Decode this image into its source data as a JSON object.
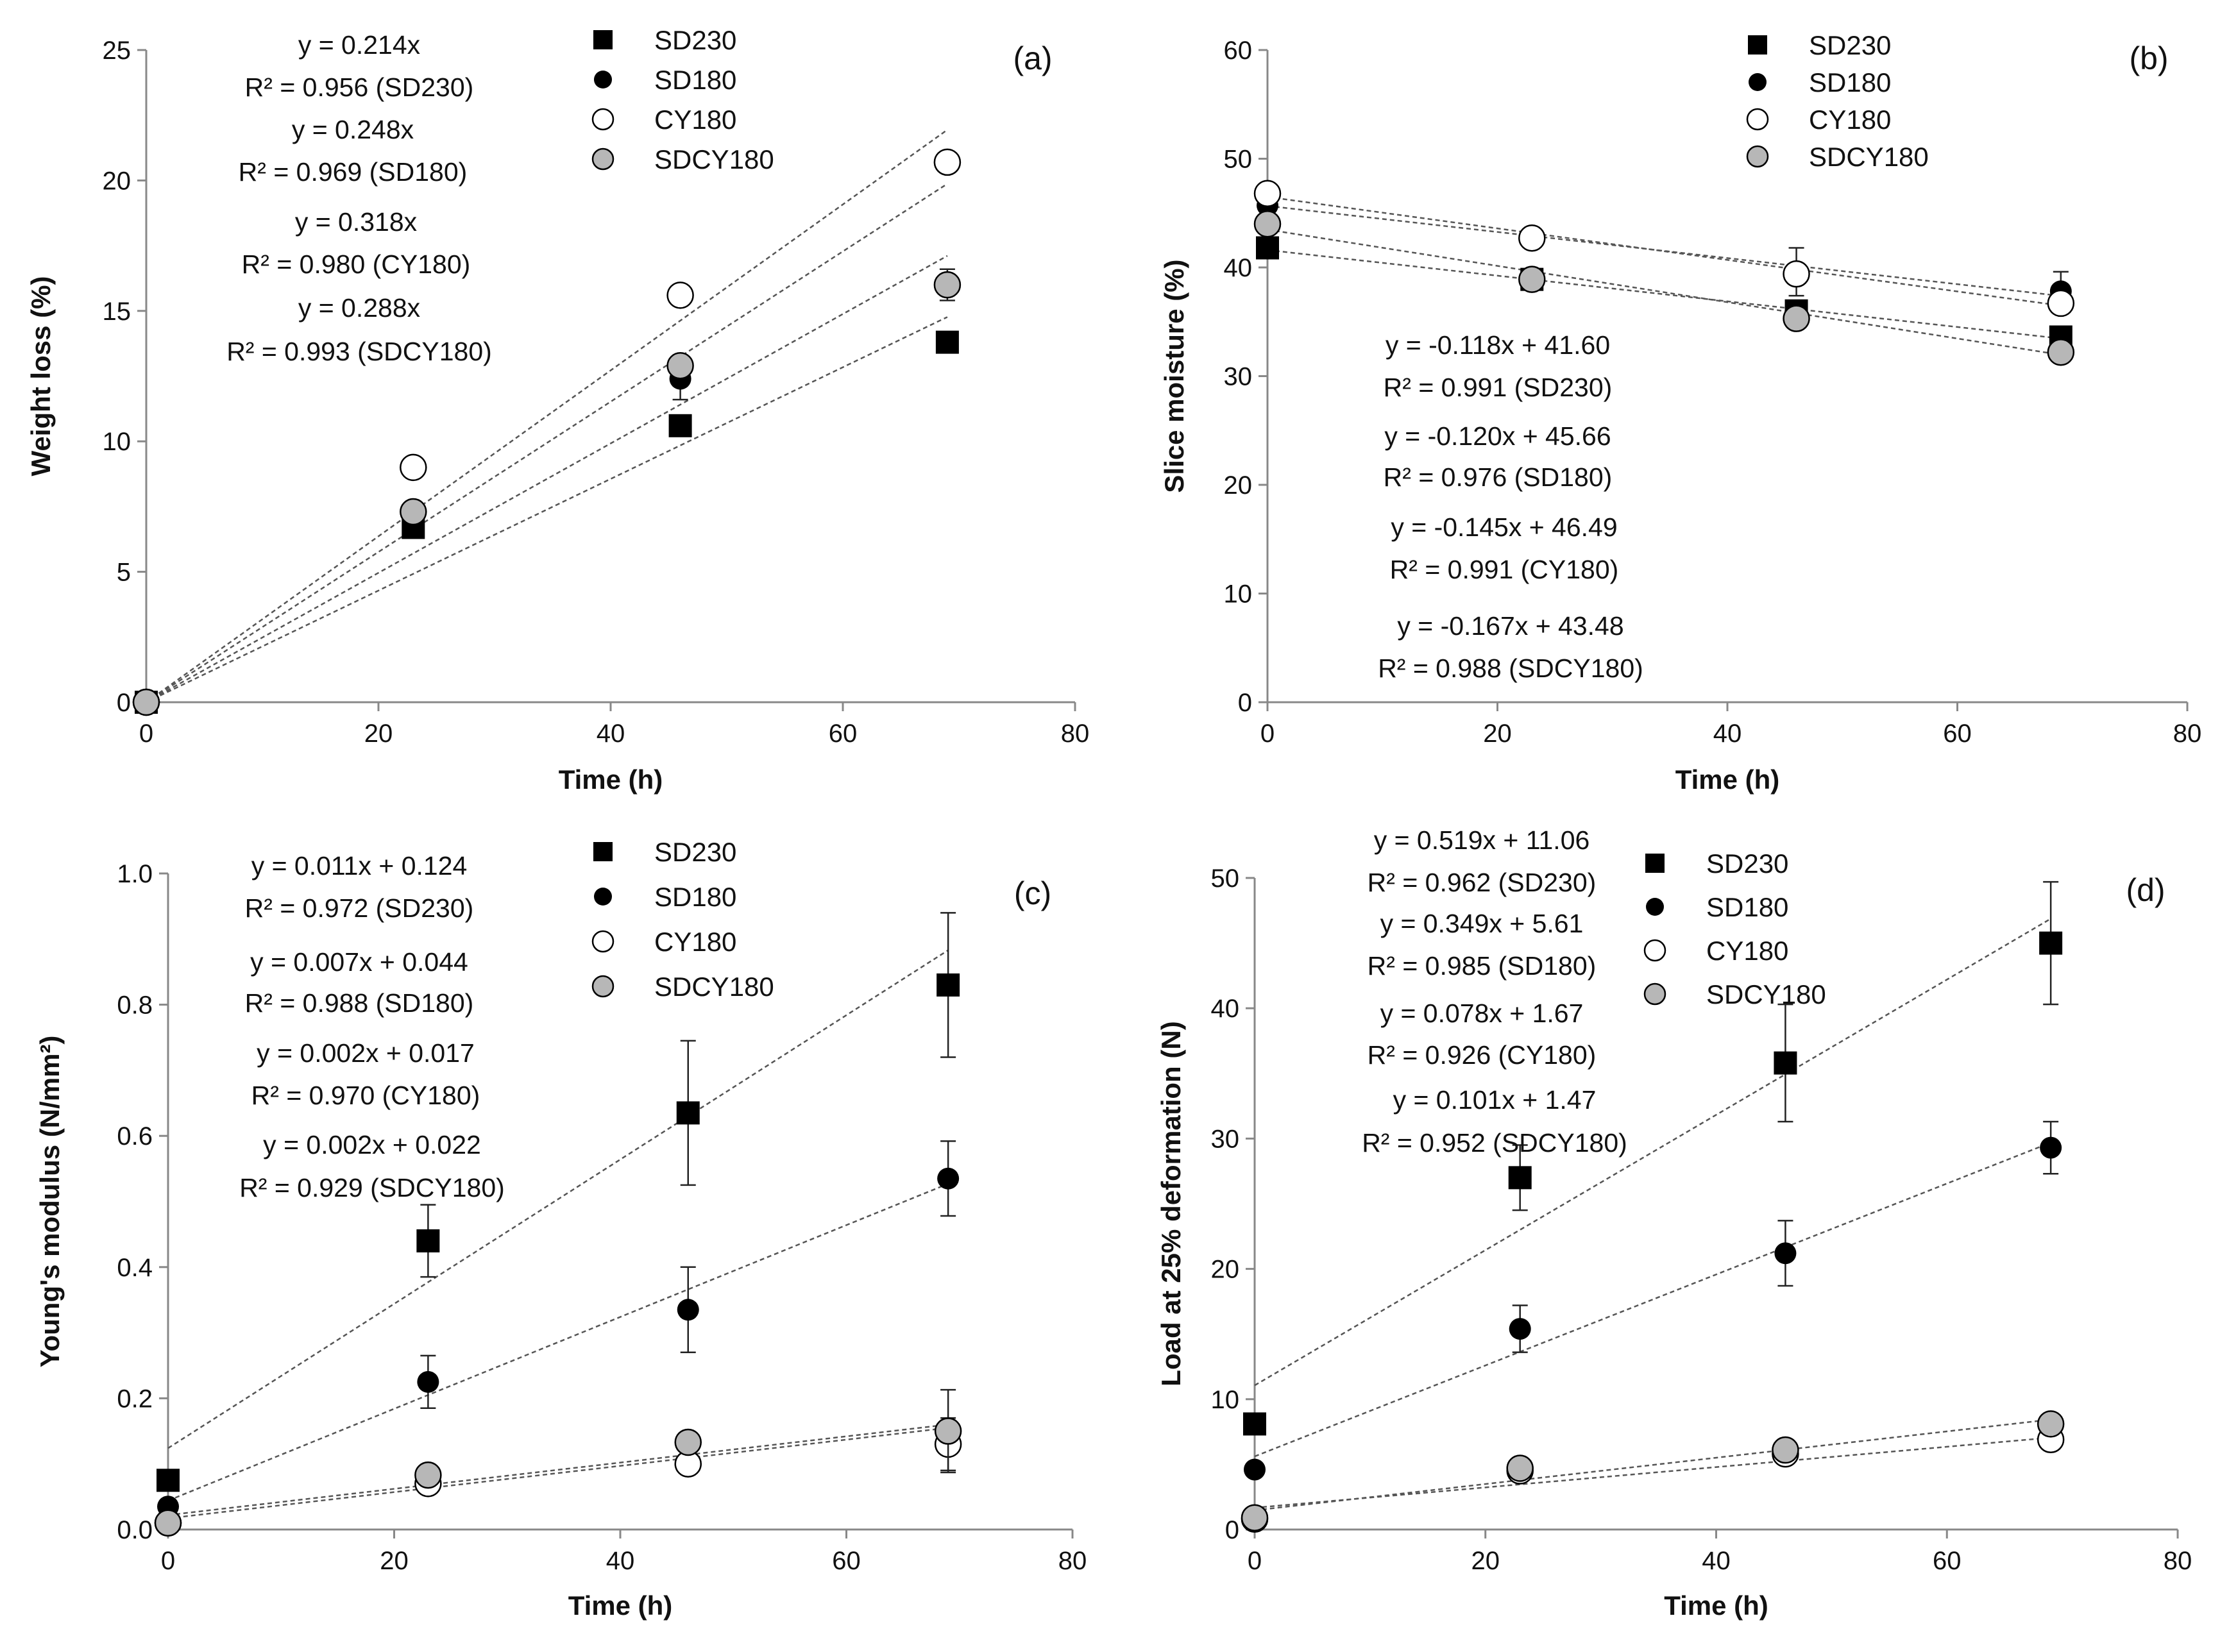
{
  "chart_data": [
    {
      "type": "scatter",
      "panel_label": "(a)",
      "xlabel": "Time (h)",
      "ylabel": "Weight loss (%)",
      "xlim": [
        0,
        80
      ],
      "ylim": [
        0,
        25
      ],
      "xticks": [
        "0",
        "20",
        "40",
        "60",
        "80"
      ],
      "yticks": [
        "0",
        "5",
        "10",
        "15",
        "20",
        "25"
      ],
      "legend": [
        "SD230",
        "SD180",
        "CY180",
        "SDCY180"
      ],
      "series": [
        {
          "name": "SD230",
          "marker": "square-filled",
          "x": [
            0,
            23,
            46,
            69
          ],
          "y": [
            0,
            6.7,
            10.6,
            13.8
          ],
          "err": [
            0,
            0,
            0.3,
            0.4
          ],
          "fit": {
            "slope": 0.214,
            "intercept": 0
          }
        },
        {
          "name": "SD180",
          "marker": "circle-filled",
          "x": [
            0,
            23,
            46,
            69
          ],
          "y": [
            0,
            7.2,
            12.4,
            16.0
          ],
          "err": [
            0,
            0,
            0.8,
            0.6
          ],
          "fit": {
            "slope": 0.248,
            "intercept": 0
          }
        },
        {
          "name": "CY180",
          "marker": "circle-open",
          "x": [
            0,
            23,
            46,
            69
          ],
          "y": [
            0,
            9.0,
            15.6,
            20.7
          ],
          "err": [
            0,
            0,
            0,
            0
          ],
          "fit": {
            "slope": 0.318,
            "intercept": 0
          }
        },
        {
          "name": "SDCY180",
          "marker": "circle-gray",
          "x": [
            0,
            23,
            46,
            69
          ],
          "y": [
            0,
            7.3,
            12.9,
            16.0
          ],
          "err": [
            0,
            0,
            0,
            0
          ],
          "fit": {
            "slope": 0.288,
            "intercept": 0
          }
        }
      ],
      "equations": [
        {
          "eq": "y = 0.214x",
          "r2": "R² = 0.956 (SD230)"
        },
        {
          "eq": "y = 0.248x",
          "r2": "R² = 0.969 (SD180)"
        },
        {
          "eq": "y = 0.318x",
          "r2": "R² = 0.980 (CY180)"
        },
        {
          "eq": "y = 0.288x",
          "r2": "R² = 0.993 (SDCY180)"
        }
      ]
    },
    {
      "type": "scatter",
      "panel_label": "(b)",
      "xlabel": "Time (h)",
      "ylabel": "Slice moisture (%)",
      "xlim": [
        0,
        80
      ],
      "ylim": [
        0,
        60
      ],
      "xticks": [
        "0",
        "20",
        "40",
        "60",
        "80"
      ],
      "yticks": [
        "0",
        "10",
        "20",
        "30",
        "40",
        "50",
        "60"
      ],
      "legend": [
        "SD230",
        "SD180",
        "CY180",
        "SDCY180"
      ],
      "series": [
        {
          "name": "SD230",
          "marker": "square-filled",
          "x": [
            0,
            23,
            46,
            69
          ],
          "y": [
            41.8,
            38.9,
            36.0,
            33.6
          ],
          "err": [
            0,
            0,
            0,
            0
          ],
          "fit": {
            "slope": -0.118,
            "intercept": 41.6
          }
        },
        {
          "name": "SD180",
          "marker": "circle-filled",
          "x": [
            0,
            23,
            46,
            69
          ],
          "y": [
            45.7,
            42.8,
            39.6,
            37.8
          ],
          "err": [
            0,
            0,
            2.2,
            1.8
          ],
          "fit": {
            "slope": -0.12,
            "intercept": 45.66
          }
        },
        {
          "name": "CY180",
          "marker": "circle-open",
          "x": [
            0,
            23,
            46,
            69
          ],
          "y": [
            46.8,
            42.7,
            39.4,
            36.7
          ],
          "err": [
            0,
            0,
            0,
            0
          ],
          "fit": {
            "slope": -0.145,
            "intercept": 46.49
          }
        },
        {
          "name": "SDCY180",
          "marker": "circle-gray",
          "x": [
            0,
            23,
            46,
            69
          ],
          "y": [
            44.0,
            38.9,
            35.3,
            32.2
          ],
          "err": [
            0,
            0,
            0,
            0
          ],
          "fit": {
            "slope": -0.167,
            "intercept": 43.48
          }
        }
      ],
      "equations": [
        {
          "eq": "y = -0.118x + 41.60",
          "r2": "R² = 0.991 (SD230)"
        },
        {
          "eq": "y = -0.120x + 45.66",
          "r2": "R² = 0.976 (SD180)"
        },
        {
          "eq": "y = -0.145x + 46.49",
          "r2": "R² = 0.991 (CY180)"
        },
        {
          "eq": "y = -0.167x + 43.48",
          "r2": "R² = 0.988 (SDCY180)"
        }
      ]
    },
    {
      "type": "scatter",
      "panel_label": "(c)",
      "xlabel": "Time (h)",
      "ylabel": "Young's modulus (N/mm²)",
      "xlim": [
        0,
        80
      ],
      "ylim": [
        0,
        1.0
      ],
      "xticks": [
        "0",
        "20",
        "40",
        "60",
        "80"
      ],
      "yticks": [
        "0.0",
        "0.2",
        "0.4",
        "0.6",
        "0.8",
        "1.0"
      ],
      "legend": [
        "SD230",
        "SD180",
        "CY180",
        "SDCY180"
      ],
      "series": [
        {
          "name": "SD230",
          "marker": "square-filled",
          "x": [
            0,
            23,
            46,
            69
          ],
          "y": [
            0.075,
            0.44,
            0.635,
            0.83
          ],
          "err": [
            0,
            0.055,
            0.11,
            0.11
          ],
          "fit": {
            "slope": 0.011,
            "intercept": 0.124
          }
        },
        {
          "name": "SD180",
          "marker": "circle-filled",
          "x": [
            0,
            23,
            46,
            69
          ],
          "y": [
            0.035,
            0.225,
            0.335,
            0.535
          ],
          "err": [
            0,
            0.04,
            0.065,
            0.057
          ],
          "fit": {
            "slope": 0.007,
            "intercept": 0.044
          }
        },
        {
          "name": "CY180",
          "marker": "circle-open",
          "x": [
            0,
            23,
            46,
            69
          ],
          "y": [
            0.01,
            0.07,
            0.1,
            0.13
          ],
          "err": [
            0,
            0,
            0,
            0.04
          ],
          "fit": {
            "slope": 0.002,
            "intercept": 0.017
          }
        },
        {
          "name": "SDCY180",
          "marker": "circle-gray",
          "x": [
            0,
            23,
            46,
            69
          ],
          "y": [
            0.01,
            0.083,
            0.133,
            0.15
          ],
          "err": [
            0,
            0,
            0,
            0.063
          ],
          "fit": {
            "slope": 0.002,
            "intercept": 0.022
          }
        }
      ],
      "equations": [
        {
          "eq": "y = 0.011x + 0.124",
          "r2": "R² = 0.972 (SD230)"
        },
        {
          "eq": "y = 0.007x + 0.044",
          "r2": "R² = 0.988 (SD180)"
        },
        {
          "eq": "y = 0.002x + 0.017",
          "r2": "R² = 0.970 (CY180)"
        },
        {
          "eq": "y = 0.002x + 0.022",
          "r2": "R² = 0.929 (SDCY180)"
        }
      ]
    },
    {
      "type": "scatter",
      "panel_label": "(d)",
      "xlabel": "Time (h)",
      "ylabel": "Load at 25% deformation (N)",
      "xlim": [
        0,
        80
      ],
      "ylim": [
        0,
        50
      ],
      "xticks": [
        "0",
        "20",
        "40",
        "60",
        "80"
      ],
      "yticks": [
        "0",
        "10",
        "20",
        "30",
        "40",
        "50"
      ],
      "legend": [
        "SD230",
        "SD180",
        "CY180",
        "SDCY180"
      ],
      "series": [
        {
          "name": "SD230",
          "marker": "square-filled",
          "x": [
            0,
            23,
            46,
            69
          ],
          "y": [
            8.1,
            27.0,
            35.8,
            45.0
          ],
          "err": [
            0,
            2.5,
            4.5,
            4.7
          ],
          "fit": {
            "slope": 0.519,
            "intercept": 11.06
          }
        },
        {
          "name": "SD180",
          "marker": "circle-filled",
          "x": [
            0,
            23,
            46,
            69
          ],
          "y": [
            4.6,
            15.4,
            21.2,
            29.3
          ],
          "err": [
            0,
            1.8,
            2.5,
            2.0
          ],
          "fit": {
            "slope": 0.349,
            "intercept": 5.61
          }
        },
        {
          "name": "CY180",
          "marker": "circle-open",
          "x": [
            0,
            23,
            46,
            69
          ],
          "y": [
            0.8,
            4.5,
            5.8,
            6.9
          ],
          "err": [
            0,
            0,
            0,
            0
          ],
          "fit": {
            "slope": 0.078,
            "intercept": 1.67
          }
        },
        {
          "name": "SDCY180",
          "marker": "circle-gray",
          "x": [
            0,
            23,
            46,
            69
          ],
          "y": [
            0.9,
            4.7,
            6.1,
            8.1
          ],
          "err": [
            0,
            0,
            0,
            0
          ],
          "fit": {
            "slope": 0.101,
            "intercept": 1.47
          }
        }
      ],
      "equations": [
        {
          "eq": "y = 0.519x + 11.06",
          "r2": "R² = 0.962 (SD230)"
        },
        {
          "eq": "y = 0.349x + 5.61",
          "r2": "R² = 0.985 (SD180)"
        },
        {
          "eq": "y = 0.078x + 1.67",
          "r2": "R² = 0.926 (CY180)"
        },
        {
          "eq": "y = 0.101x + 1.47",
          "r2": "R² = 0.952 (SDCY180)"
        }
      ]
    }
  ]
}
